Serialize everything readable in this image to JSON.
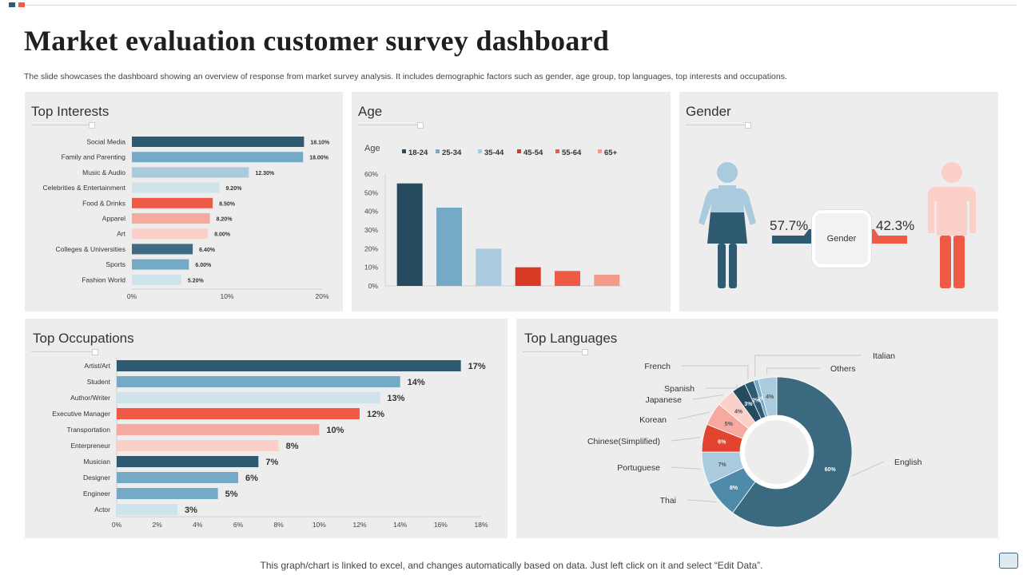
{
  "page": {
    "title": "Market evaluation customer survey dashboard",
    "subtitle": "The slide showcases the dashboard showing an overview of response from market survey analysis. It includes demographic factors such as gender, age group, top languages, top interests and occupations.",
    "footer": "This graph/chart is linked to excel,  and changes automatically based on data. Just left click on it and select “Edit Data”."
  },
  "colors": {
    "dark_teal": "#2e5b72",
    "teal": "#3f6b82",
    "mid_blue": "#75aac7",
    "light_blue": "#a9cbdd",
    "pale_blue": "#cfe3ec",
    "dark_red": "#d83a23",
    "red": "#ef5a46",
    "salmon": "#f6aa9f",
    "pale_salmon": "#fbd0c8"
  },
  "panels": {
    "interests": "Top Interests",
    "age": "Age",
    "gender": "Gender",
    "occupations": "Top Occupations",
    "languages": "Top Languages"
  },
  "gender": {
    "center_label": "Gender",
    "female_pct": "57.7%",
    "male_pct": "42.3%",
    "female_value": 57.7,
    "male_value": 42.3
  },
  "chart_data": [
    {
      "id": "interests",
      "type": "bar",
      "orientation": "horizontal",
      "title": "Top Interests",
      "categories": [
        "Social Media",
        "Family and Parenting",
        "Music & Audio",
        "Celebrities & Entertainment",
        "Food & Drinks",
        "Apparel",
        "Art",
        "Colleges & Universities",
        "Sports",
        "Fashion World"
      ],
      "values": [
        18.1,
        18.0,
        12.3,
        9.2,
        8.5,
        8.2,
        8.0,
        6.4,
        6.0,
        5.2
      ],
      "labels": [
        "18.10%",
        "18.00%",
        "12.30%",
        "9.20%",
        "8.50%",
        "8.20%",
        "8.00%",
        "6.40%",
        "6.00%",
        "5.20%"
      ],
      "colors": [
        "#2e5b72",
        "#75aac7",
        "#a9cbdd",
        "#cfe3ec",
        "#ef5a46",
        "#f6aa9f",
        "#fbd0c8",
        "#3f6b82",
        "#75aac7",
        "#cfe3ec"
      ],
      "xticks": [
        "0%",
        "10%",
        "20%"
      ],
      "xlim": [
        0,
        20
      ]
    },
    {
      "id": "age",
      "type": "bar",
      "title": "Age",
      "legend_title": "Age",
      "categories": [
        "18-24",
        "25-34",
        "35-44",
        "45-54",
        "55-64",
        "65+"
      ],
      "values": [
        55,
        42,
        20,
        10,
        8,
        6
      ],
      "colors": [
        "#274b5e",
        "#75aac7",
        "#a9cbdd",
        "#d83a23",
        "#ef5a46",
        "#f59a8a"
      ],
      "yticks": [
        "0%",
        "10%",
        "20%",
        "30%",
        "40%",
        "50%",
        "60%"
      ],
      "ylim": [
        0,
        60
      ],
      "legend": "top"
    },
    {
      "id": "occupations",
      "type": "bar",
      "orientation": "horizontal",
      "title": "Top Occupations",
      "categories": [
        "Artist/Art",
        "Student",
        "Author/Writer",
        "Executive Manager",
        "Transportation",
        "Enterpreneur",
        "Musician",
        "Designer",
        "Engineer",
        "Actor"
      ],
      "values": [
        17,
        14,
        13,
        12,
        10,
        8,
        7,
        6,
        5,
        3
      ],
      "labels": [
        "17%",
        "14%",
        "13%",
        "12%",
        "10%",
        "8%",
        "7%",
        "6%",
        "5%",
        "3%"
      ],
      "colors": [
        "#2e5b72",
        "#75aac7",
        "#cfe3ec",
        "#ef5a46",
        "#f6aa9f",
        "#fbd0c8",
        "#2e5b72",
        "#75aac7",
        "#75aac7",
        "#cfe3ec"
      ],
      "xticks": [
        "0%",
        "2%",
        "4%",
        "6%",
        "8%",
        "10%",
        "12%",
        "14%",
        "16%",
        "18%"
      ],
      "xlim": [
        0,
        18
      ]
    },
    {
      "id": "languages",
      "type": "pie",
      "variant": "donut",
      "title": "Top Languages",
      "categories": [
        "English",
        "Thai",
        "Portuguese",
        "Chinese(Simplified)",
        "Korean",
        "Japanese",
        "Spanish",
        "French",
        "Italian",
        "Others"
      ],
      "values": [
        60,
        8,
        7,
        6,
        5,
        4,
        3,
        2,
        1,
        4
      ],
      "labels": [
        "60%",
        "8%",
        "7%",
        "6%",
        "5%",
        "4%",
        "3%",
        "2%",
        "1%",
        "4%"
      ],
      "colors": [
        "#3a6980",
        "#4f8aab",
        "#a9cbdd",
        "#e2442f",
        "#f6aa9f",
        "#fbd0c8",
        "#274b5e",
        "#2e5b72",
        "#75aac7",
        "#a9cbdd"
      ]
    }
  ]
}
